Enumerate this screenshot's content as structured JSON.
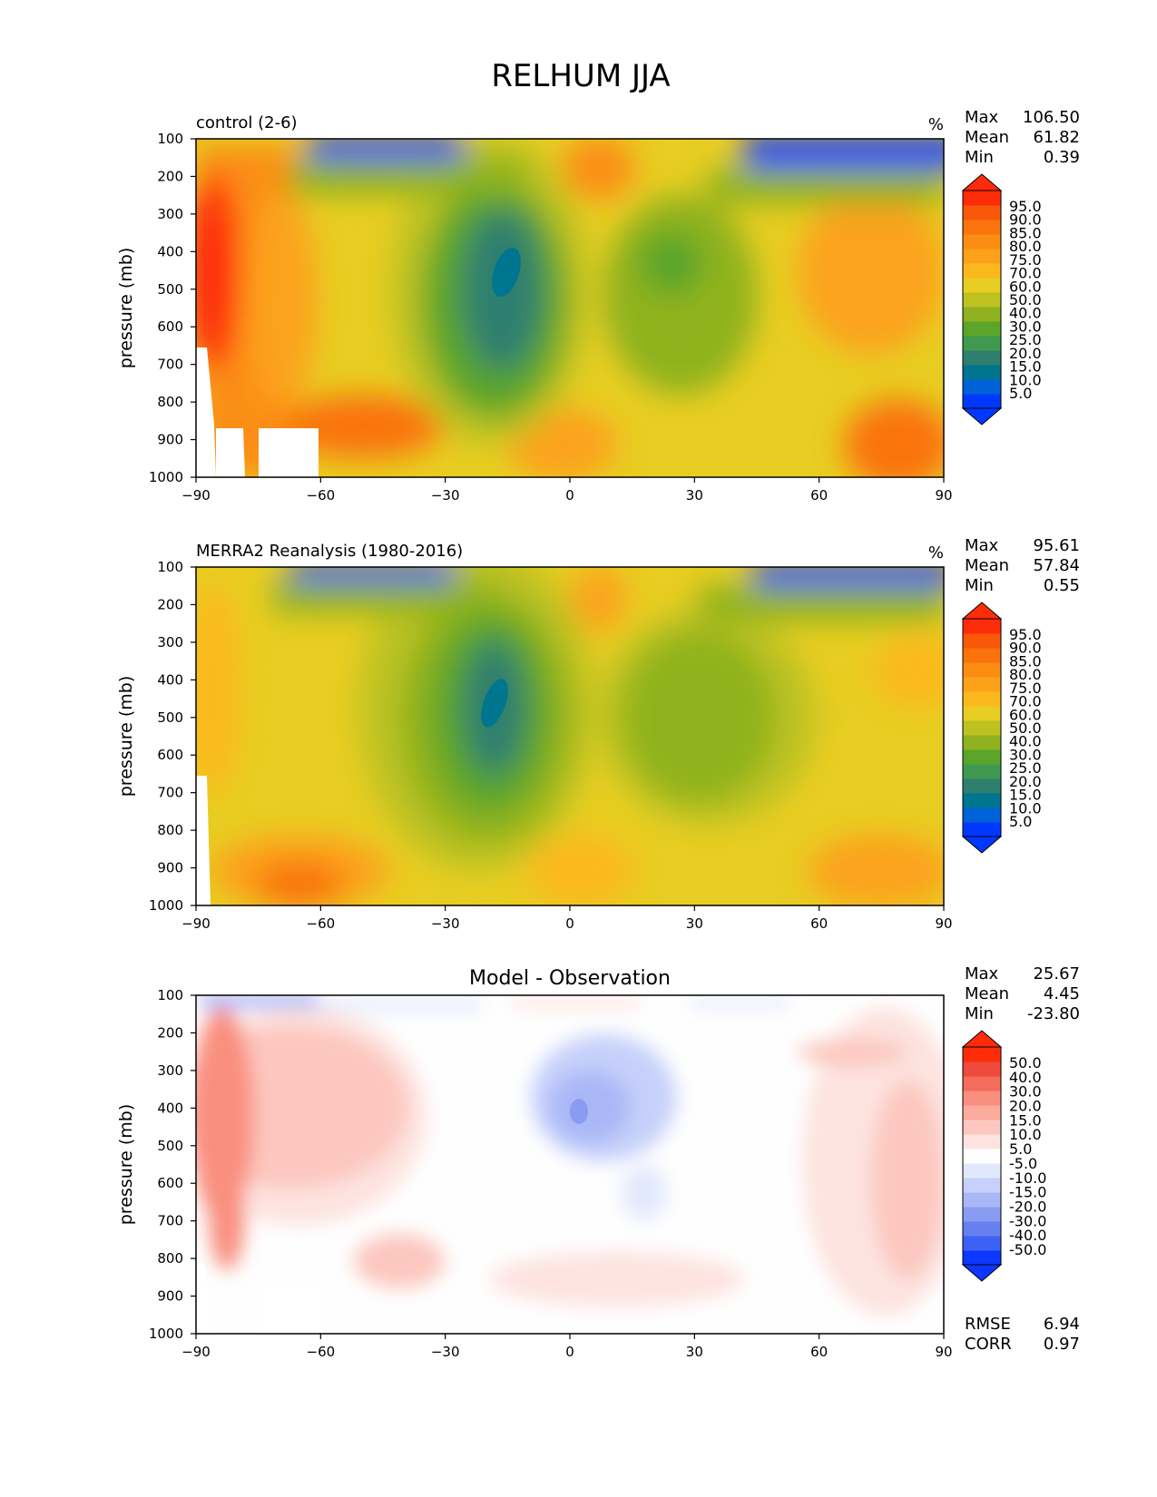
{
  "chart_data": {
    "title": "RELHUM JJA",
    "panels": [
      {
        "type": "heatmap",
        "kind": "abs",
        "title": "control (2-6)",
        "title_position": "left",
        "units": "%",
        "xlabel": "",
        "ylabel": "pressure (mb)",
        "xlim": [
          -90,
          90
        ],
        "ylim": [
          1000,
          100
        ],
        "xticks": [
          "−90",
          "−60",
          "−30",
          "0",
          "30",
          "60",
          "90"
        ],
        "yticks": [
          "100",
          "200",
          "300",
          "400",
          "500",
          "600",
          "700",
          "800",
          "900",
          "1000"
        ],
        "stats": [
          {
            "label": "Max",
            "value": "106.50"
          },
          {
            "label": "Mean",
            "value": "61.82"
          },
          {
            "label": "Min",
            "value": "0.39"
          }
        ],
        "colorbar_levels": [
          "95.0",
          "90.0",
          "85.0",
          "80.0",
          "75.0",
          "70.0",
          "60.0",
          "50.0",
          "40.0",
          "30.0",
          "25.0",
          "20.0",
          "15.0",
          "10.0",
          "5.0"
        ]
      },
      {
        "type": "heatmap",
        "kind": "abs",
        "title": "MERRA2 Reanalysis (1980-2016)",
        "title_position": "left",
        "units": "%",
        "xlabel": "",
        "ylabel": "pressure (mb)",
        "xlim": [
          -90,
          90
        ],
        "ylim": [
          1000,
          100
        ],
        "xticks": [
          "−90",
          "−60",
          "−30",
          "0",
          "30",
          "60",
          "90"
        ],
        "yticks": [
          "100",
          "200",
          "300",
          "400",
          "500",
          "600",
          "700",
          "800",
          "900",
          "1000"
        ],
        "stats": [
          {
            "label": "Max",
            "value": "95.61"
          },
          {
            "label": "Mean",
            "value": "57.84"
          },
          {
            "label": "Min",
            "value": "0.55"
          }
        ],
        "colorbar_levels": [
          "95.0",
          "90.0",
          "85.0",
          "80.0",
          "75.0",
          "70.0",
          "60.0",
          "50.0",
          "40.0",
          "30.0",
          "25.0",
          "20.0",
          "15.0",
          "10.0",
          "5.0"
        ]
      },
      {
        "type": "heatmap",
        "kind": "diff",
        "title": "Model - Observation",
        "title_position": "center",
        "units": "",
        "xlabel": "",
        "ylabel": "pressure (mb)",
        "xlim": [
          -90,
          90
        ],
        "ylim": [
          1000,
          100
        ],
        "xticks": [
          "−90",
          "−60",
          "−30",
          "0",
          "30",
          "60",
          "90"
        ],
        "yticks": [
          "100",
          "200",
          "300",
          "400",
          "500",
          "600",
          "700",
          "800",
          "900",
          "1000"
        ],
        "stats": [
          {
            "label": "Max",
            "value": "25.67"
          },
          {
            "label": "Mean",
            "value": "4.45"
          },
          {
            "label": "Min",
            "value": "-23.80"
          }
        ],
        "colorbar_levels": [
          "50.0",
          "40.0",
          "30.0",
          "20.0",
          "15.0",
          "10.0",
          "5.0",
          "-5.0",
          "-10.0",
          "-15.0",
          "-20.0",
          "-30.0",
          "-40.0",
          "-50.0"
        ],
        "extra_stats": [
          {
            "label": "RMSE",
            "value": "6.94"
          },
          {
            "label": "CORR",
            "value": "0.97"
          }
        ]
      }
    ]
  },
  "colors": {
    "abs_scale": [
      "#0038ff",
      "#0062d6",
      "#00758f",
      "#2f7f6f",
      "#3f9a4f",
      "#5aa52a",
      "#8fb21e",
      "#bdc220",
      "#e8cd22",
      "#fbb91d",
      "#fca21a",
      "#fb8e12",
      "#fa730c",
      "#f85808",
      "#ff2c0a"
    ],
    "diff_scale": [
      "#0d37ff",
      "#3c61f4",
      "#6680ee",
      "#8a9cf1",
      "#a9b7f7",
      "#c6d0fa",
      "#e2e8fc",
      "#fefefe",
      "#fde3df",
      "#fcc7bf",
      "#fcab9f",
      "#f98f7f",
      "#f56c5c",
      "#f04a3c",
      "#ff2c0a"
    ]
  }
}
